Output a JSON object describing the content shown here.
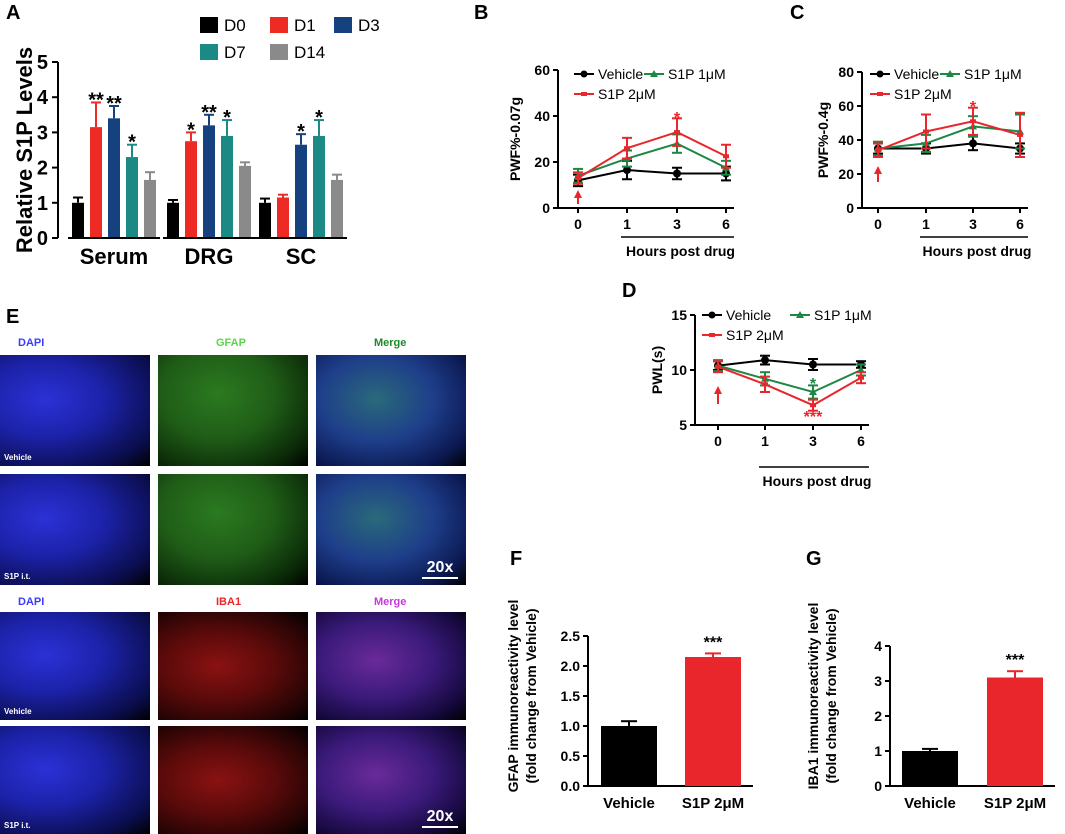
{
  "panels": {
    "A": "A",
    "B": "B",
    "C": "C",
    "D": "D",
    "E": "E",
    "F": "F",
    "G": "G"
  },
  "colors": {
    "D0": "#000000",
    "D1": "#ee2a24",
    "D3": "#15427f",
    "D7": "#1c8a84",
    "D14": "#8a8a8a",
    "Vehicle": "#000000",
    "S1P1": "#1d8744",
    "S1P2": "#e8262b"
  },
  "chart_data": [
    {
      "id": "A",
      "type": "bar",
      "ylabel": "Relative S1P Levels",
      "categories": [
        "Serum",
        "DRG",
        "SC"
      ],
      "ylim": [
        0,
        5
      ],
      "yticks": [
        0,
        1,
        2,
        3,
        4,
        5
      ],
      "series": [
        {
          "name": "D0",
          "values": [
            1.0,
            1.0,
            1.0
          ],
          "errors": [
            0.15,
            0.08,
            0.12
          ],
          "stars": [
            "",
            "",
            ""
          ]
        },
        {
          "name": "D1",
          "values": [
            3.15,
            2.75,
            1.15
          ],
          "errors": [
            0.7,
            0.25,
            0.08
          ],
          "stars": [
            "**",
            "*",
            ""
          ]
        },
        {
          "name": "D3",
          "values": [
            3.4,
            3.2,
            2.65
          ],
          "errors": [
            0.35,
            0.3,
            0.3
          ],
          "stars": [
            "**",
            "**",
            "*"
          ]
        },
        {
          "name": "D7",
          "values": [
            2.3,
            2.9,
            2.9
          ],
          "errors": [
            0.35,
            0.45,
            0.45
          ],
          "stars": [
            "*",
            "*",
            "*"
          ]
        },
        {
          "name": "D14",
          "values": [
            1.65,
            2.05,
            1.65
          ],
          "errors": [
            0.22,
            0.1,
            0.15
          ],
          "stars": [
            "",
            "",
            ""
          ]
        }
      ]
    },
    {
      "id": "B",
      "type": "line",
      "ylabel": "PWF%-0.07g",
      "xlabel": "Hours post drug",
      "x": [
        0,
        1,
        3,
        6
      ],
      "ylim": [
        0,
        60
      ],
      "yticks": [
        0,
        20,
        40,
        60
      ],
      "series": [
        {
          "name": "Vehicle",
          "values": [
            12,
            16.5,
            15,
            15
          ],
          "errors": [
            2.5,
            4,
            2.5,
            3
          ]
        },
        {
          "name": "S1P 1μM",
          "values": [
            14,
            21.5,
            28,
            17.5
          ],
          "errors": [
            3,
            3.5,
            4,
            3
          ]
        },
        {
          "name": "S1P 2μM",
          "values": [
            13,
            26,
            33,
            22.5
          ],
          "errors": [
            2.5,
            4.5,
            6,
            5
          ]
        }
      ],
      "stars": [
        {
          "x": 3,
          "y": 39.5,
          "text": "*",
          "series": "S1P 2μM"
        }
      ]
    },
    {
      "id": "C",
      "type": "line",
      "ylabel": "PWF%-0.4g",
      "xlabel": "Hours post drug",
      "x": [
        0,
        1,
        3,
        6
      ],
      "ylim": [
        0,
        80
      ],
      "yticks": [
        0,
        20,
        40,
        60,
        80
      ],
      "series": [
        {
          "name": "Vehicle",
          "values": [
            35,
            35,
            38,
            35
          ],
          "errors": [
            3,
            3,
            4,
            3
          ]
        },
        {
          "name": "S1P 1μM",
          "values": [
            35,
            38,
            48,
            45
          ],
          "errors": [
            4,
            5,
            6,
            10
          ]
        },
        {
          "name": "S1P 2μM",
          "values": [
            34,
            45,
            51,
            43
          ],
          "errors": [
            4,
            10,
            8,
            13
          ]
        }
      ],
      "stars": [
        {
          "x": 3,
          "y": 60,
          "text": "*",
          "series": "S1P 2μM"
        }
      ]
    },
    {
      "id": "D",
      "type": "line",
      "ylabel": "PWL(s)",
      "xlabel": "Hours post drug",
      "x": [
        0,
        1,
        3,
        6
      ],
      "ylim": [
        5,
        15
      ],
      "yticks": [
        5,
        10,
        15
      ],
      "series": [
        {
          "name": "Vehicle",
          "values": [
            10.4,
            10.9,
            10.5,
            10.5
          ],
          "errors": [
            0.4,
            0.4,
            0.5,
            0.3
          ]
        },
        {
          "name": "S1P 1μM",
          "values": [
            10.4,
            9.2,
            8.0,
            10.0
          ],
          "errors": [
            0.5,
            0.6,
            0.6,
            0.5
          ]
        },
        {
          "name": "S1P 2μM",
          "values": [
            10.3,
            8.7,
            6.8,
            9.3
          ],
          "errors": [
            0.5,
            0.7,
            0.5,
            0.5
          ]
        }
      ],
      "stars": [
        {
          "x": 3,
          "y": 8.8,
          "text": "*",
          "series": "S1P 1μM"
        },
        {
          "x": 3,
          "y": 5.8,
          "text": "***",
          "series": "S1P 2μM"
        }
      ]
    },
    {
      "id": "F",
      "type": "bar",
      "ylabel": "GFAP immunoreactivity level\n(fold change from Vehicle)",
      "categories": [
        "Vehicle",
        "S1P 2μM"
      ],
      "values": [
        1.0,
        2.15
      ],
      "errors": [
        0.08,
        0.06
      ],
      "ylim": [
        0,
        2.5
      ],
      "yticks": [
        0.0,
        0.5,
        1.0,
        1.5,
        2.0,
        2.5
      ],
      "star": "***"
    },
    {
      "id": "G",
      "type": "bar",
      "ylabel": "IBA1 immunoreactivity level\n(fold change from Vehicle)",
      "categories": [
        "Vehicle",
        "S1P 2μM"
      ],
      "values": [
        1.0,
        3.1
      ],
      "errors": [
        0.06,
        0.18
      ],
      "ylim": [
        0,
        4
      ],
      "yticks": [
        0,
        1,
        2,
        3,
        4
      ],
      "star": "***"
    }
  ],
  "micrographs": {
    "top_headers": [
      "DAPI",
      "GFAP",
      "Merge"
    ],
    "bottom_headers": [
      "DAPI",
      "IBA1",
      "Merge"
    ],
    "row_labels": [
      "Vehicle",
      "S1P i.t."
    ],
    "scale": "20x"
  }
}
